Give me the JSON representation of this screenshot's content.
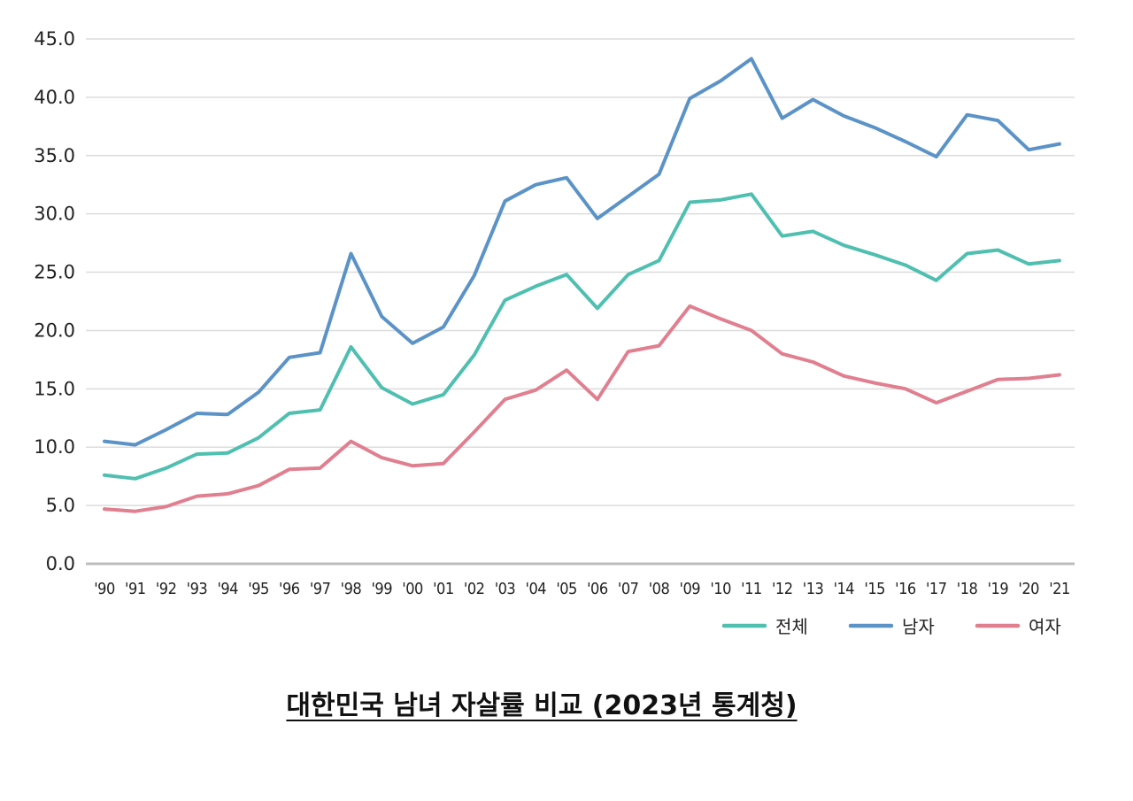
{
  "caption": "대한민국 남녀 자살률 비교 (2023년 통계청)",
  "chart_data": {
    "type": "line",
    "title": "",
    "xlabel": "",
    "ylabel": "",
    "ylim": [
      0,
      45
    ],
    "y_ticks": [
      "0.0",
      "5.0",
      "10.0",
      "15.0",
      "20.0",
      "25.0",
      "30.0",
      "35.0",
      "40.0",
      "45.0"
    ],
    "grid": true,
    "legend_position": "bottom-right",
    "categories": [
      "'90",
      "'91",
      "'92",
      "'93",
      "'94",
      "'95",
      "'96",
      "'97",
      "'98",
      "'99",
      "'00",
      "'01",
      "'02",
      "'03",
      "'04",
      "'05",
      "'06",
      "'07",
      "'08",
      "'09",
      "'10",
      "'11",
      "'12",
      "'13",
      "'14",
      "'15",
      "'16",
      "'17",
      "'18",
      "'19",
      "'20",
      "'21"
    ],
    "series": [
      {
        "name": "전체",
        "color": "#4fbfb0",
        "values": [
          7.6,
          7.3,
          8.2,
          9.4,
          9.5,
          10.8,
          12.9,
          13.2,
          18.6,
          15.1,
          13.7,
          14.5,
          17.9,
          22.6,
          23.8,
          24.8,
          21.9,
          24.8,
          26.0,
          31.0,
          31.2,
          31.7,
          28.1,
          28.5,
          27.3,
          26.5,
          25.6,
          24.3,
          26.6,
          26.9,
          25.7,
          26.0
        ]
      },
      {
        "name": "남자",
        "color": "#5b93c7",
        "values": [
          10.5,
          10.2,
          11.5,
          12.9,
          12.8,
          14.7,
          17.7,
          18.1,
          26.6,
          21.2,
          18.9,
          20.3,
          24.7,
          31.1,
          32.5,
          33.1,
          29.6,
          31.5,
          33.4,
          39.9,
          41.4,
          43.3,
          38.2,
          39.8,
          38.4,
          37.4,
          36.2,
          34.9,
          38.5,
          38.0,
          35.5,
          36.0
        ]
      },
      {
        "name": "여자",
        "color": "#e07f8f",
        "values": [
          4.7,
          4.5,
          4.9,
          5.8,
          6.0,
          6.7,
          8.1,
          8.2,
          10.5,
          9.1,
          8.4,
          8.6,
          11.3,
          14.1,
          14.9,
          16.6,
          14.1,
          18.2,
          18.7,
          22.1,
          21.0,
          20.0,
          18.0,
          17.3,
          16.1,
          15.5,
          15.0,
          13.8,
          14.8,
          15.8,
          15.9,
          16.2
        ]
      }
    ]
  }
}
